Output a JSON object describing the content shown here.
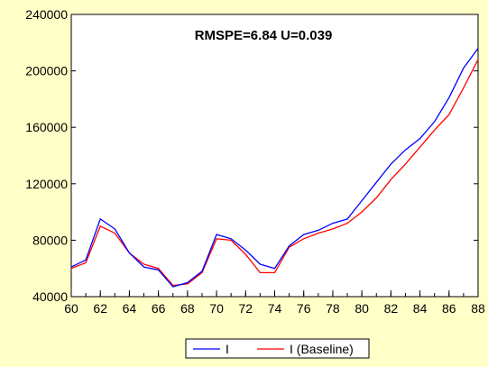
{
  "chart_data": {
    "type": "line",
    "title": "",
    "annotation": "RMSPE=6.84   U=0.039",
    "xlabel": "",
    "ylabel": "",
    "x": [
      60,
      61,
      62,
      63,
      64,
      65,
      66,
      67,
      68,
      69,
      70,
      71,
      72,
      73,
      74,
      75,
      76,
      77,
      78,
      79,
      80,
      81,
      82,
      83,
      84,
      85,
      86,
      87,
      88
    ],
    "xlim": [
      60,
      88
    ],
    "ylim": [
      40000,
      240000
    ],
    "x_ticks": [
      "60",
      "62",
      "64",
      "66",
      "68",
      "70",
      "72",
      "74",
      "76",
      "78",
      "80",
      "82",
      "84",
      "86",
      "88"
    ],
    "y_ticks": [
      "40000",
      "80000",
      "120000",
      "160000",
      "200000",
      "240000"
    ],
    "grid": false,
    "legend_position": "bottom-center",
    "series": [
      {
        "name": "I",
        "color": "#0000ff",
        "values": [
          61000,
          66000,
          95000,
          88000,
          71000,
          61000,
          59000,
          47000,
          50000,
          58000,
          84000,
          81000,
          73000,
          63000,
          60000,
          76000,
          84000,
          87000,
          92000,
          95000,
          108000,
          121000,
          134000,
          144000,
          152000,
          164000,
          181000,
          202000,
          216000
        ]
      },
      {
        "name": "I (Baseline)",
        "color": "#ff0000",
        "values": [
          60000,
          64000,
          90000,
          85000,
          71000,
          63000,
          60000,
          48000,
          49000,
          57000,
          81000,
          80000,
          70000,
          57000,
          57000,
          75000,
          81000,
          85000,
          88000,
          92000,
          100000,
          110000,
          123000,
          134000,
          146000,
          158000,
          169000,
          188000,
          208000
        ]
      }
    ]
  }
}
